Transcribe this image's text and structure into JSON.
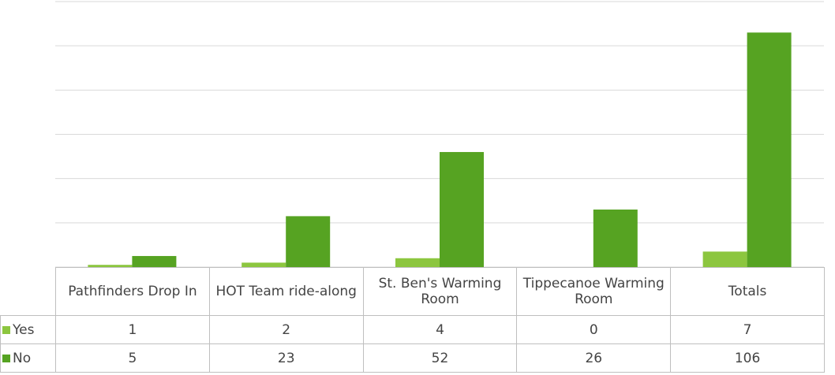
{
  "chart_data": {
    "type": "bar",
    "categories": [
      "Pathfinders Drop In",
      "HOT Team ride-along",
      "St. Ben's Warming Room",
      "Tippecanoe Warming Room",
      "Totals"
    ],
    "series": [
      {
        "name": "Yes",
        "color": "#8cc63f",
        "values": [
          1,
          2,
          4,
          0,
          7
        ]
      },
      {
        "name": "No",
        "color": "#56a322",
        "values": [
          5,
          23,
          52,
          26,
          106
        ]
      }
    ],
    "ylim": [
      0,
      120
    ],
    "yticks": [
      0,
      20,
      40,
      60,
      80,
      100,
      120
    ],
    "grid": true,
    "data_table": true
  }
}
